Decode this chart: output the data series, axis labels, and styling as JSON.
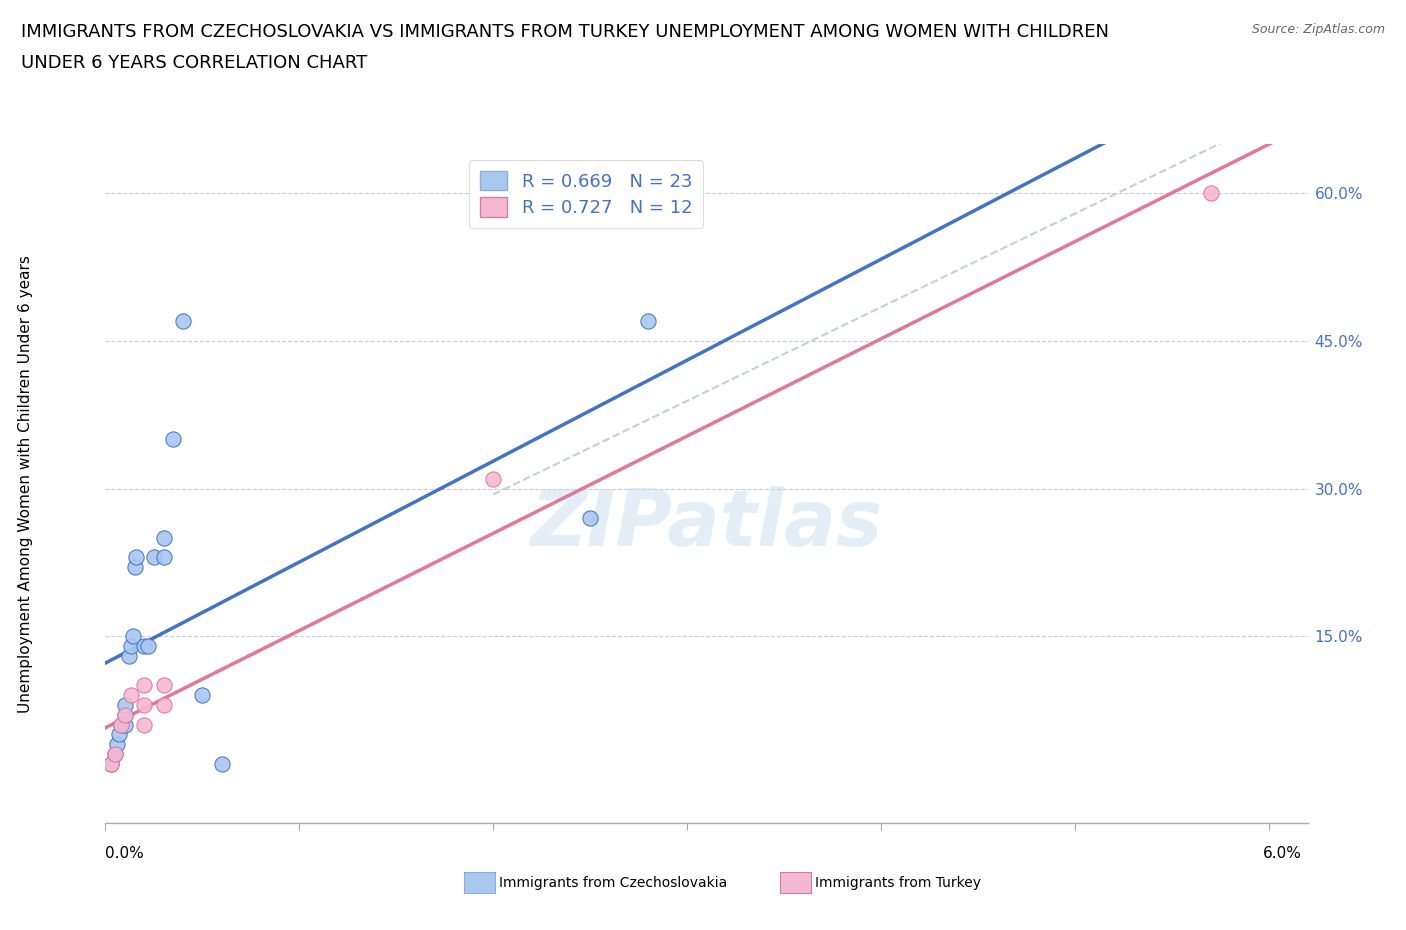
{
  "title_line1": "IMMIGRANTS FROM CZECHOSLOVAKIA VS IMMIGRANTS FROM TURKEY UNEMPLOYMENT AMONG WOMEN WITH CHILDREN",
  "title_line2": "UNDER 6 YEARS CORRELATION CHART",
  "source": "Source: ZipAtlas.com",
  "xlabel_bottom_left": "0.0%",
  "xlabel_bottom_right": "6.0%",
  "ylabel": "Unemployment Among Women with Children Under 6 years",
  "right_yticks": [
    "15.0%",
    "30.0%",
    "45.0%",
    "60.0%"
  ],
  "right_ytick_vals": [
    0.15,
    0.3,
    0.45,
    0.6
  ],
  "legend_label1": "Immigrants from Czechoslovakia",
  "legend_label2": "Immigrants from Turkey",
  "color_czech": "#a8c8f0",
  "color_turkey": "#f4b8d4",
  "color_czech_line": "#4472c4",
  "color_turkey_line": "#e07898",
  "color_regression_dashed": "#b8c8d8",
  "watermark": "ZIPatlas",
  "xlim": [
    0.0,
    0.062
  ],
  "ylim": [
    -0.04,
    0.65
  ],
  "czech_x": [
    0.0003,
    0.0005,
    0.0006,
    0.0007,
    0.0008,
    0.001,
    0.001,
    0.001,
    0.0012,
    0.0013,
    0.0014,
    0.0015,
    0.0016,
    0.002,
    0.0022,
    0.0025,
    0.003,
    0.003,
    0.0035,
    0.004,
    0.005,
    0.006,
    0.025,
    0.028
  ],
  "czech_y": [
    0.02,
    0.03,
    0.04,
    0.05,
    0.06,
    0.06,
    0.07,
    0.08,
    0.13,
    0.14,
    0.15,
    0.22,
    0.23,
    0.14,
    0.14,
    0.23,
    0.23,
    0.25,
    0.35,
    0.47,
    0.09,
    0.02,
    0.27,
    0.47
  ],
  "turkey_x": [
    0.0003,
    0.0005,
    0.0008,
    0.001,
    0.0013,
    0.002,
    0.002,
    0.002,
    0.003,
    0.003,
    0.02,
    0.057
  ],
  "turkey_y": [
    0.02,
    0.03,
    0.06,
    0.07,
    0.09,
    0.06,
    0.08,
    0.1,
    0.08,
    0.1,
    0.31,
    0.6
  ],
  "title_fontsize": 13,
  "axis_label_fontsize": 11,
  "tick_fontsize": 11,
  "legend_fontsize": 13
}
